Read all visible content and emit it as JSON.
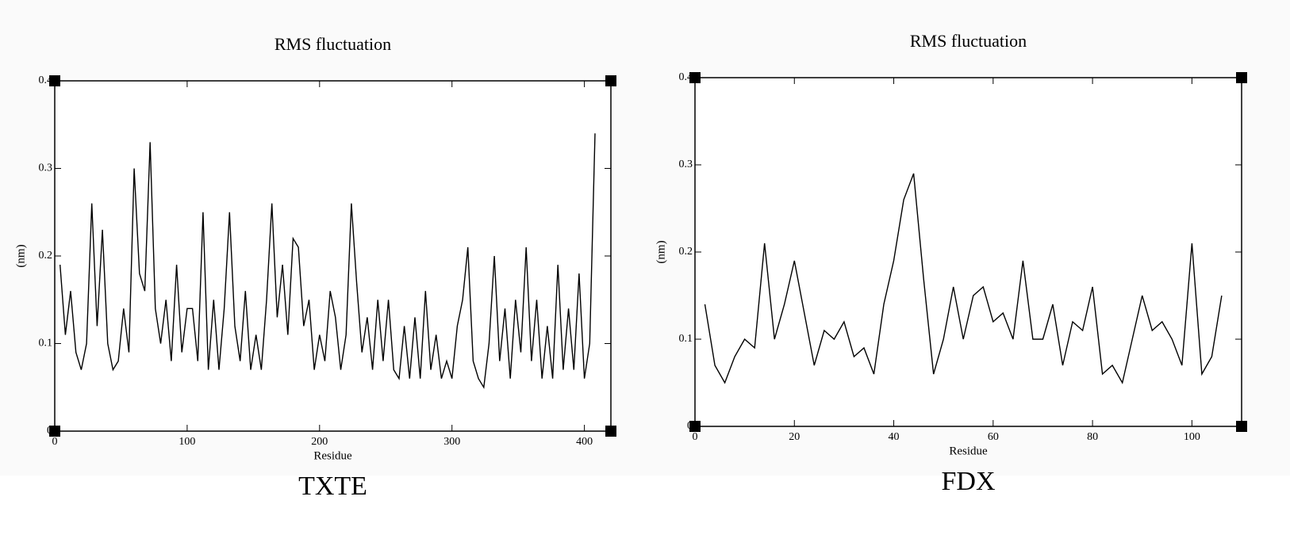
{
  "chart_data": [
    {
      "type": "line",
      "title": "RMS fluctuation",
      "xlabel": "Residue",
      "ylabel": "(nm)",
      "caption": "TXTE",
      "xlim": [
        0,
        420
      ],
      "ylim": [
        0,
        0.4
      ],
      "xticks": [
        0,
        100,
        200,
        300,
        400
      ],
      "yticks": [
        0,
        0.1,
        0.2,
        0.3,
        0.4
      ],
      "series": [
        {
          "color": "#000000",
          "x": [
            4,
            8,
            12,
            16,
            20,
            24,
            28,
            32,
            36,
            40,
            44,
            48,
            52,
            56,
            60,
            64,
            68,
            72,
            76,
            80,
            84,
            88,
            92,
            96,
            100,
            104,
            108,
            112,
            116,
            120,
            124,
            128,
            132,
            136,
            140,
            144,
            148,
            152,
            156,
            160,
            164,
            168,
            172,
            176,
            180,
            184,
            188,
            192,
            196,
            200,
            204,
            208,
            212,
            216,
            220,
            224,
            228,
            232,
            236,
            240,
            244,
            248,
            252,
            256,
            260,
            264,
            268,
            272,
            276,
            280,
            284,
            288,
            292,
            296,
            300,
            304,
            308,
            312,
            316,
            320,
            324,
            328,
            332,
            336,
            340,
            344,
            348,
            352,
            356,
            360,
            364,
            368,
            372,
            376,
            380,
            384,
            388,
            392,
            396,
            400,
            404,
            408
          ],
          "values": [
            0.19,
            0.11,
            0.16,
            0.09,
            0.07,
            0.1,
            0.26,
            0.12,
            0.23,
            0.1,
            0.07,
            0.08,
            0.14,
            0.09,
            0.3,
            0.18,
            0.16,
            0.33,
            0.14,
            0.1,
            0.15,
            0.08,
            0.19,
            0.09,
            0.14,
            0.14,
            0.08,
            0.25,
            0.07,
            0.15,
            0.07,
            0.14,
            0.25,
            0.12,
            0.08,
            0.16,
            0.07,
            0.11,
            0.07,
            0.15,
            0.26,
            0.13,
            0.19,
            0.11,
            0.22,
            0.21,
            0.12,
            0.15,
            0.07,
            0.11,
            0.08,
            0.16,
            0.13,
            0.07,
            0.11,
            0.26,
            0.17,
            0.09,
            0.13,
            0.07,
            0.15,
            0.08,
            0.15,
            0.07,
            0.06,
            0.12,
            0.06,
            0.13,
            0.06,
            0.16,
            0.07,
            0.11,
            0.06,
            0.08,
            0.06,
            0.12,
            0.15,
            0.21,
            0.08,
            0.06,
            0.05,
            0.1,
            0.2,
            0.08,
            0.14,
            0.06,
            0.15,
            0.09,
            0.21,
            0.08,
            0.15,
            0.06,
            0.12,
            0.06,
            0.19,
            0.07,
            0.14,
            0.07,
            0.18,
            0.06,
            0.1,
            0.34
          ]
        }
      ]
    },
    {
      "type": "line",
      "title": "RMS fluctuation",
      "xlabel": "Residue",
      "ylabel": "(nm)",
      "caption": "FDX",
      "xlim": [
        0,
        110
      ],
      "ylim": [
        0,
        0.4
      ],
      "xticks": [
        0,
        20,
        40,
        60,
        80,
        100
      ],
      "yticks": [
        0,
        0.1,
        0.2,
        0.3,
        0.4
      ],
      "series": [
        {
          "color": "#000000",
          "x": [
            2,
            4,
            6,
            8,
            10,
            12,
            14,
            16,
            18,
            20,
            22,
            24,
            26,
            28,
            30,
            32,
            34,
            36,
            38,
            40,
            42,
            44,
            46,
            48,
            50,
            52,
            54,
            56,
            58,
            60,
            62,
            64,
            66,
            68,
            70,
            72,
            74,
            76,
            78,
            80,
            82,
            84,
            86,
            88,
            90,
            92,
            94,
            96,
            98,
            100,
            102,
            104,
            106
          ],
          "values": [
            0.14,
            0.07,
            0.05,
            0.08,
            0.1,
            0.09,
            0.21,
            0.1,
            0.14,
            0.19,
            0.13,
            0.07,
            0.11,
            0.1,
            0.12,
            0.08,
            0.09,
            0.06,
            0.14,
            0.19,
            0.26,
            0.29,
            0.17,
            0.06,
            0.1,
            0.16,
            0.1,
            0.15,
            0.16,
            0.12,
            0.13,
            0.1,
            0.19,
            0.1,
            0.1,
            0.14,
            0.07,
            0.12,
            0.11,
            0.16,
            0.06,
            0.07,
            0.05,
            0.1,
            0.15,
            0.11,
            0.12,
            0.1,
            0.07,
            0.21,
            0.06,
            0.08,
            0.15
          ]
        }
      ]
    }
  ]
}
